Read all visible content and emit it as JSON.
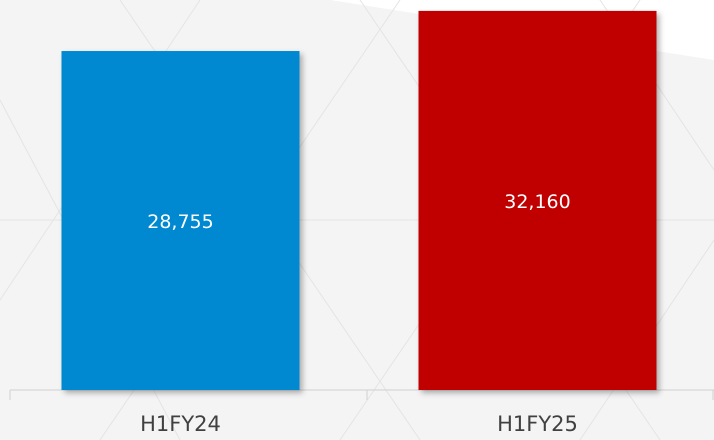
{
  "chart_data": {
    "type": "bar",
    "categories": [
      "H1FY24",
      "H1FY25"
    ],
    "series": [
      {
        "values": [
          28755,
          32160
        ],
        "value_labels": [
          "28,755",
          "32,160"
        ],
        "colors": [
          "#0288d1",
          "#c00000"
        ]
      }
    ],
    "ylim": [
      0,
      33000
    ]
  }
}
